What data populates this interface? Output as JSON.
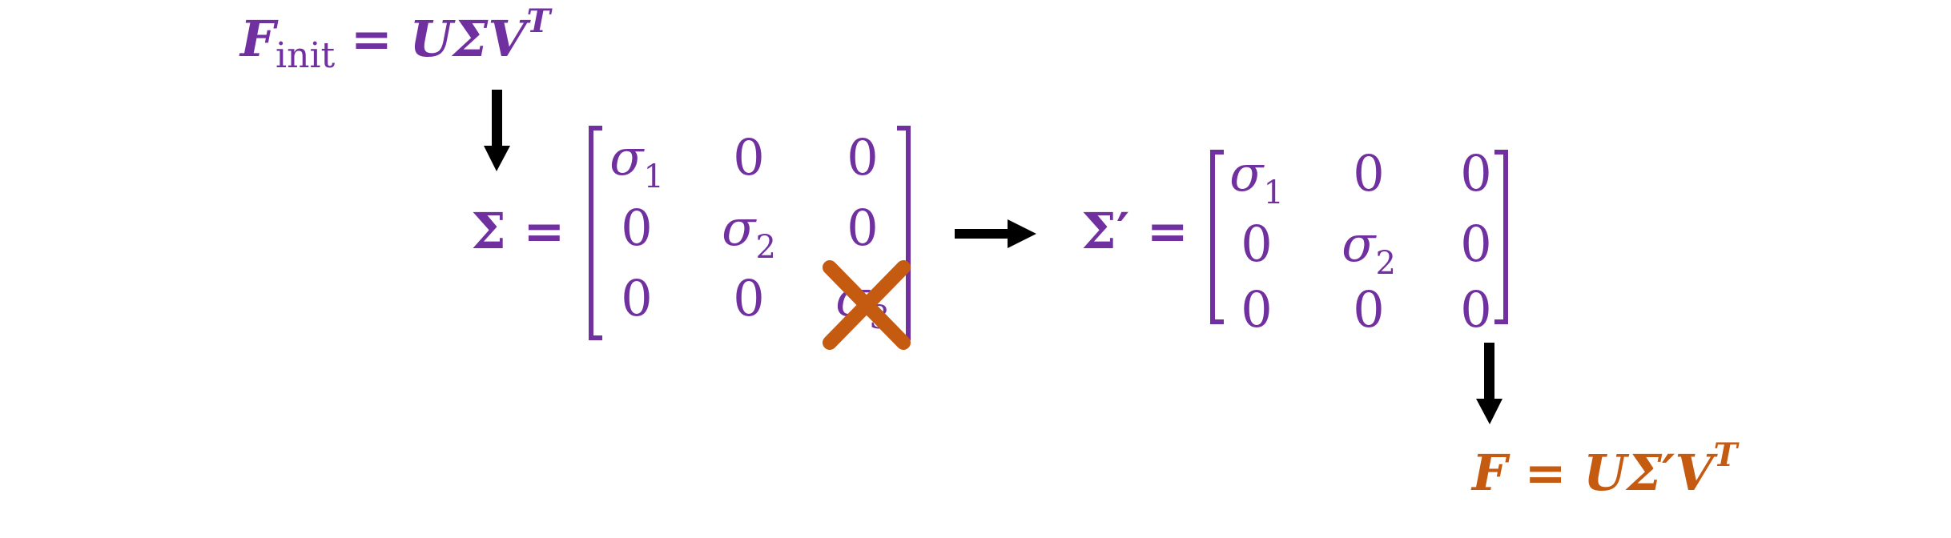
{
  "colors": {
    "purple": "#7030a0",
    "orange": "#c55a11",
    "arrow": "#000000"
  },
  "init_eq": {
    "F": "F",
    "sub": "init",
    "rhs": "= UΣV",
    "sup": "T"
  },
  "sigma_label": "Σ =",
  "sigma_prime_label": "Σ′ =",
  "matrix": {
    "rows": [
      [
        {
          "sym": "σ",
          "idx": "1"
        },
        {
          "sym": "0",
          "idx": ""
        },
        {
          "sym": "0",
          "idx": ""
        }
      ],
      [
        {
          "sym": "0",
          "idx": ""
        },
        {
          "sym": "σ",
          "idx": "2"
        },
        {
          "sym": "0",
          "idx": ""
        }
      ],
      [
        {
          "sym": "0",
          "idx": ""
        },
        {
          "sym": "0",
          "idx": ""
        },
        {
          "sym": "σ",
          "idx": "3"
        }
      ]
    ]
  },
  "matrix_prime": {
    "rows": [
      [
        {
          "sym": "σ",
          "idx": "1"
        },
        {
          "sym": "0",
          "idx": ""
        },
        {
          "sym": "0",
          "idx": ""
        }
      ],
      [
        {
          "sym": "0",
          "idx": ""
        },
        {
          "sym": "σ",
          "idx": "2"
        },
        {
          "sym": "0",
          "idx": ""
        }
      ],
      [
        {
          "sym": "0",
          "idx": ""
        },
        {
          "sym": "0",
          "idx": ""
        },
        {
          "sym": "0",
          "idx": ""
        }
      ]
    ]
  },
  "final_eq": {
    "lhs": "F = UΣ′V",
    "sup": "T"
  },
  "crossed_out": "σ3",
  "cross_mark_icon": "x-mark-icon"
}
